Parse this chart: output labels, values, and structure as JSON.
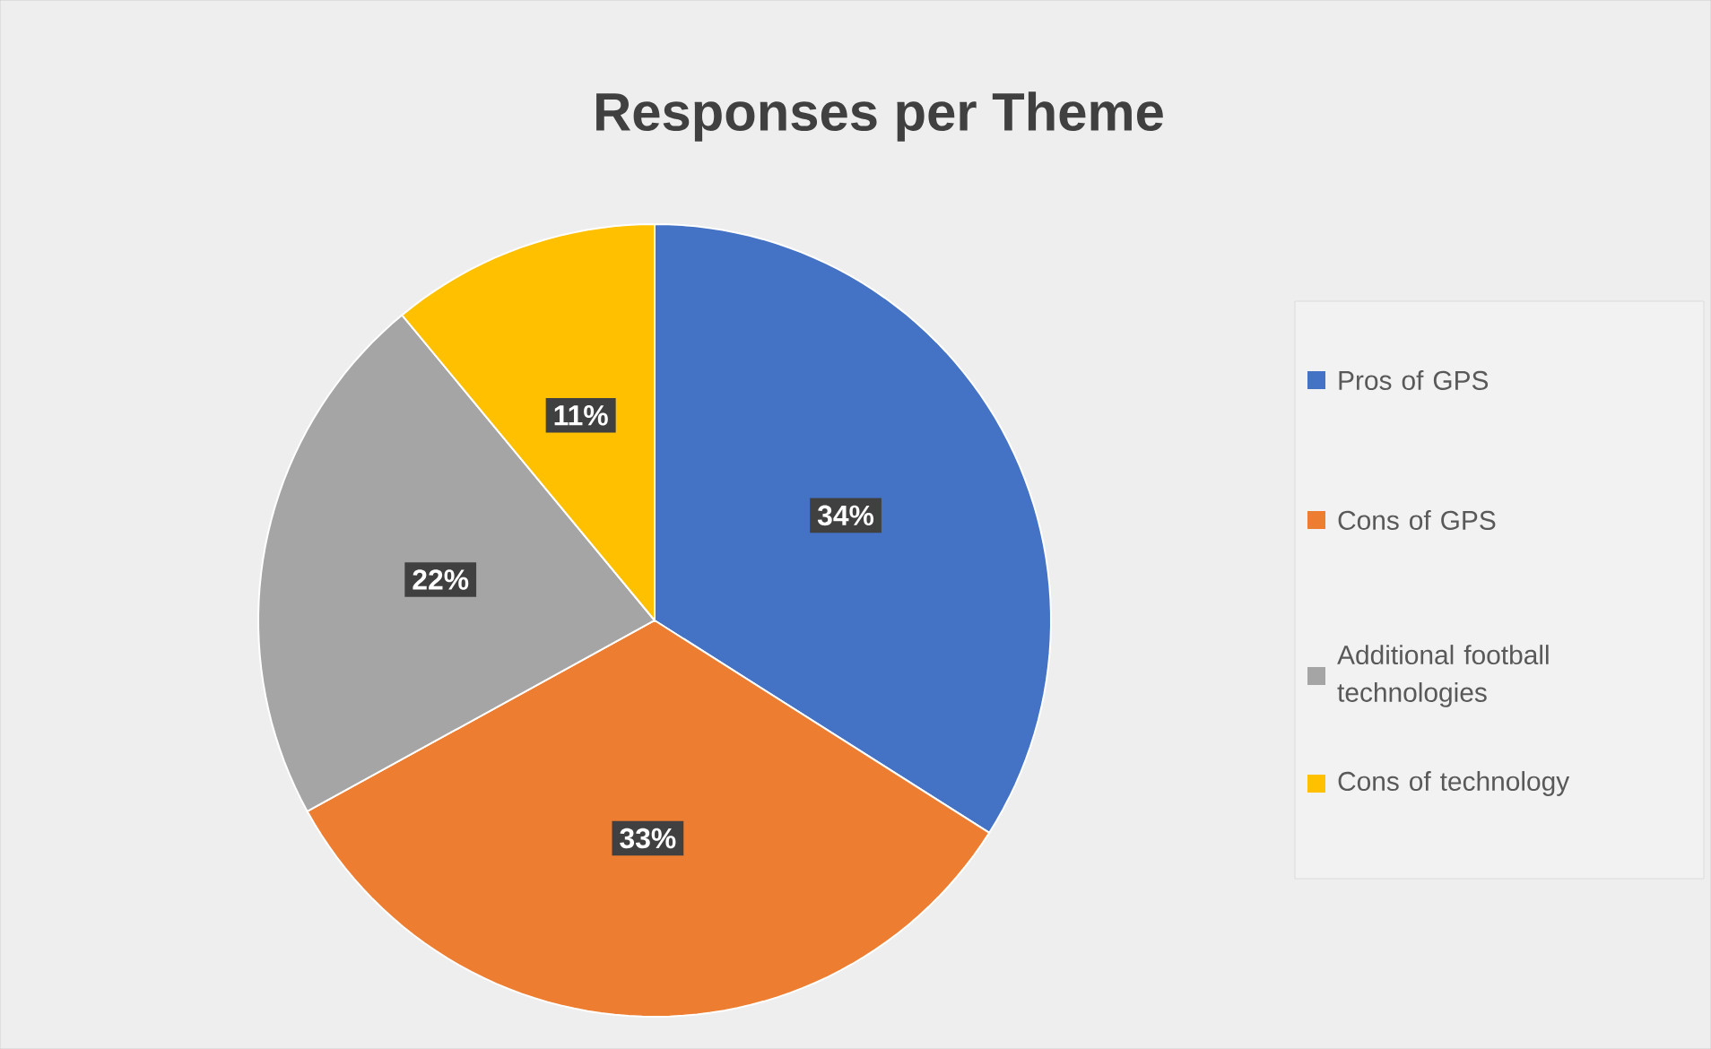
{
  "chart_data": {
    "type": "pie",
    "title": "Responses per Theme",
    "categories": [
      "Pros of GPS",
      "Cons of GPS",
      "Additional football technologies",
      "Cons of technology"
    ],
    "values": [
      34,
      33,
      22,
      11
    ],
    "value_labels": [
      "34%",
      "33%",
      "22%",
      "11%"
    ],
    "colors": [
      "#4472c4",
      "#ed7d31",
      "#a5a5a5",
      "#ffc000"
    ],
    "legend": "right"
  }
}
